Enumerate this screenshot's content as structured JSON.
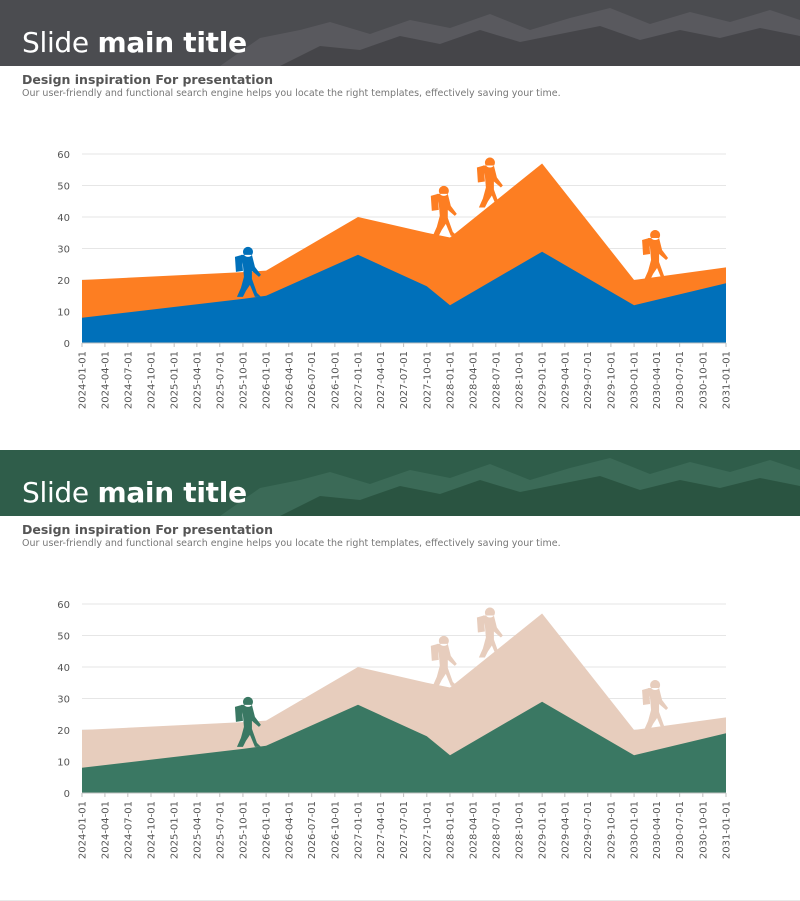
{
  "slides": [
    {
      "title_light": "Slide",
      "title_bold": "main title",
      "subtitle": "Design inspiration For presentation",
      "description": "Our user-friendly and functional search engine helps you locate the right templates, effectively saving your time.",
      "colors": {
        "header": "#4b4c50",
        "back_area": "#fd7e22",
        "front_area": "#0070ba",
        "hiker_left": "#0070ba",
        "hikers_right": "#fd7e22"
      }
    },
    {
      "title_light": "Slide",
      "title_bold": "main title",
      "subtitle": "Design inspiration For presentation",
      "description": "Our user-friendly and functional search engine helps you locate the right templates, effectively saving your time.",
      "colors": {
        "header": "#2f5d4a",
        "back_area": "#e7cdbd",
        "front_area": "#3a7863",
        "hiker_left": "#3a7863",
        "hikers_right": "#e7cdbd"
      }
    }
  ],
  "chart_data": [
    {
      "type": "area",
      "x": [
        "2024-01-01",
        "2025-10-01",
        "2026-01-01",
        "2027-01-01",
        "2027-10-01",
        "2028-01-01",
        "2029-01-01",
        "2030-01-01",
        "2031-01-01"
      ],
      "series": [
        {
          "values": [
            20,
            22.5,
            23,
            40,
            35,
            33.5,
            57,
            20,
            24
          ]
        },
        {
          "values": [
            8,
            14,
            15,
            28,
            18,
            12,
            29,
            12,
            19
          ]
        }
      ],
      "ylim": [
        0,
        60
      ],
      "yticks": [
        0,
        10,
        20,
        30,
        40,
        50,
        60
      ],
      "xticks": [
        "2024-01-01",
        "2024-04-01",
        "2024-07-01",
        "2024-10-01",
        "2025-01-01",
        "2025-04-01",
        "2025-07-01",
        "2025-10-01",
        "2026-01-01",
        "2026-04-01",
        "2026-07-01",
        "2026-10-01",
        "2027-01-01",
        "2027-04-01",
        "2027-07-01",
        "2027-10-01",
        "2028-01-01",
        "2028-04-01",
        "2028-07-01",
        "2028-10-01",
        "2029-01-01",
        "2029-04-01",
        "2029-07-01",
        "2029-10-01",
        "2030-01-01",
        "2030-04-01",
        "2030-07-01",
        "2030-10-01",
        "2031-01-01"
      ],
      "grid": true
    },
    {
      "type": "area",
      "x": [
        "2024-01-01",
        "2025-10-01",
        "2026-01-01",
        "2027-01-01",
        "2027-10-01",
        "2028-01-01",
        "2029-01-01",
        "2030-01-01",
        "2031-01-01"
      ],
      "series": [
        {
          "values": [
            20,
            22.5,
            23,
            40,
            35,
            33.5,
            57,
            20,
            24
          ]
        },
        {
          "values": [
            8,
            14,
            15,
            28,
            18,
            12,
            29,
            12,
            19
          ]
        }
      ],
      "ylim": [
        0,
        60
      ],
      "yticks": [
        0,
        10,
        20,
        30,
        40,
        50,
        60
      ],
      "xticks": [
        "2024-01-01",
        "2024-04-01",
        "2024-07-01",
        "2024-10-01",
        "2025-01-01",
        "2025-04-01",
        "2025-07-01",
        "2025-10-01",
        "2026-01-01",
        "2026-04-01",
        "2026-07-01",
        "2026-10-01",
        "2027-01-01",
        "2027-04-01",
        "2027-07-01",
        "2027-10-01",
        "2028-01-01",
        "2028-04-01",
        "2028-07-01",
        "2028-10-01",
        "2029-01-01",
        "2029-04-01",
        "2029-07-01",
        "2029-10-01",
        "2030-01-01",
        "2030-04-01",
        "2030-07-01",
        "2030-10-01",
        "2031-01-01"
      ],
      "grid": true
    }
  ]
}
